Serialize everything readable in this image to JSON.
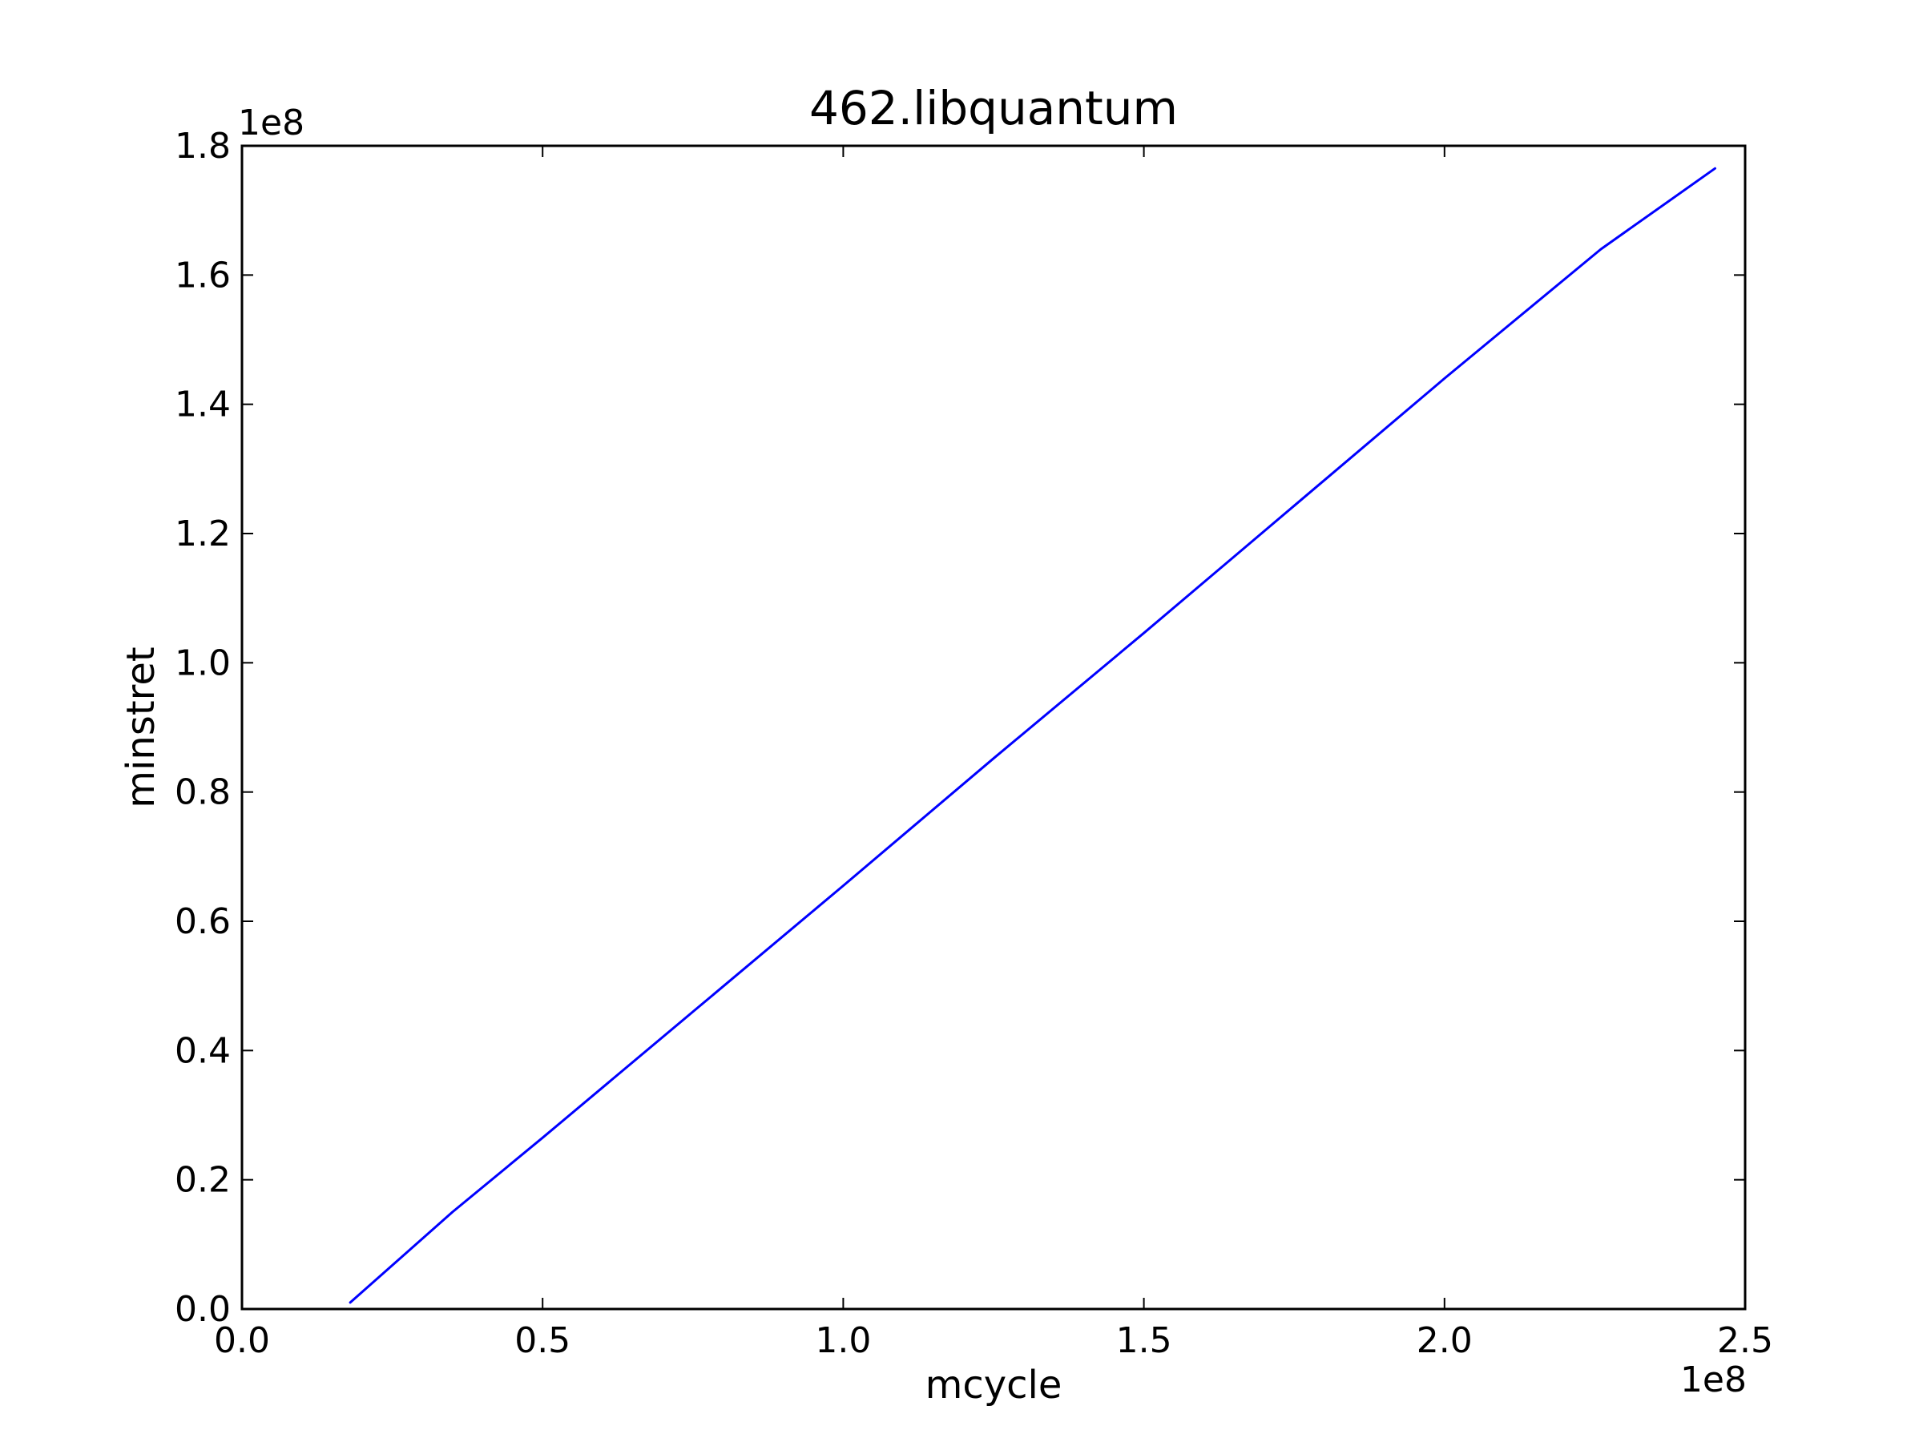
{
  "chart_data": {
    "type": "line",
    "title": "462.libquantum",
    "xlabel": "mcycle",
    "ylabel": "minstret",
    "xlim": [
      0.0,
      2.5
    ],
    "ylim": [
      0.0,
      1.8
    ],
    "x_offset_label": "1e8",
    "y_offset_label": "1e8",
    "x_ticks": [
      "0.0",
      "0.5",
      "1.0",
      "1.5",
      "2.0",
      "2.5"
    ],
    "y_ticks": [
      "0.0",
      "0.2",
      "0.4",
      "0.6",
      "0.8",
      "1.0",
      "1.2",
      "1.4",
      "1.6",
      "1.8"
    ],
    "grid": false,
    "series": [
      {
        "color": "#0000ff",
        "x": [
          0.18,
          0.35,
          0.5,
          0.75,
          1.0,
          1.25,
          1.5,
          1.75,
          2.0,
          2.26,
          2.45
        ],
        "y": [
          0.01,
          0.15,
          0.265,
          0.46,
          0.655,
          0.852,
          1.046,
          1.243,
          1.44,
          1.64,
          1.765
        ]
      }
    ]
  }
}
